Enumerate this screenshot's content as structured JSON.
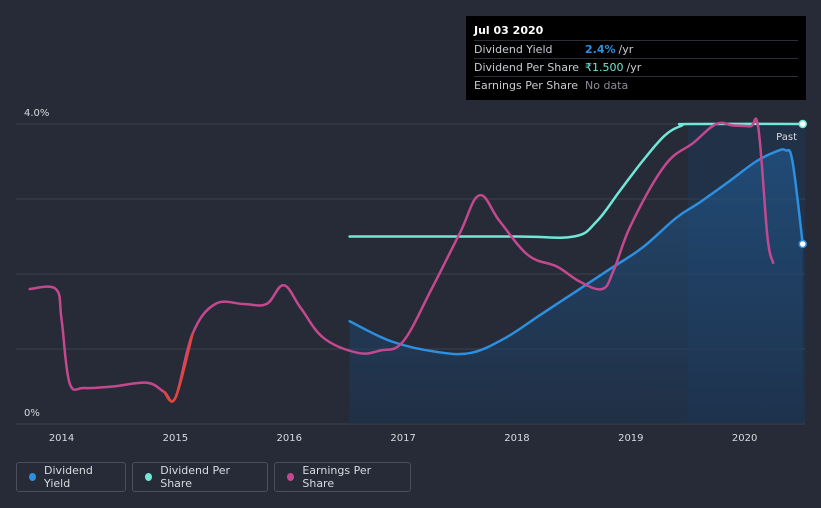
{
  "tooltip": {
    "date": "Jul 03 2020",
    "rows": [
      {
        "label": "Dividend Yield",
        "value": "2.4%",
        "unit": "/yr"
      },
      {
        "label": "Dividend Per Share",
        "value": "₹1.500",
        "unit": "/yr"
      },
      {
        "label": "Earnings Per Share",
        "value": "No data",
        "unit": ""
      }
    ]
  },
  "past_label": "Past",
  "colors": {
    "dividend_yield": "#2d8fdf",
    "dividend_per_share": "#71e7d6",
    "earnings_per_share": "#c4488e",
    "negative_eps": "#e0463b"
  },
  "chart_data": {
    "type": "line",
    "title": "",
    "xlabel": "",
    "ylabel": "",
    "y_tick_labels": [
      "4.0%",
      "0%"
    ],
    "ylim": [
      0,
      4.0
    ],
    "xlim": [
      2013.6,
      2020.53
    ],
    "x_ticks": [
      2014,
      2015,
      2016,
      2017,
      2018,
      2019,
      2020
    ],
    "grid": true,
    "legend": "bottom-left",
    "past_region_start": 2019.5,
    "series": [
      {
        "name": "Dividend Yield",
        "key": "dividend_yield",
        "filled": true,
        "x": [
          2016.53,
          2016.9,
          2017.3,
          2017.6,
          2017.9,
          2018.2,
          2018.5,
          2018.8,
          2019.1,
          2019.4,
          2019.6,
          2019.85,
          2020.1,
          2020.27,
          2020.36,
          2020.42,
          2020.51
        ],
        "y": [
          1.37,
          1.1,
          0.96,
          0.95,
          1.15,
          1.45,
          1.75,
          2.05,
          2.35,
          2.75,
          2.95,
          3.22,
          3.5,
          3.63,
          3.65,
          3.5,
          2.4
        ]
      },
      {
        "name": "Dividend Per Share",
        "key": "dividend_per_share",
        "filled": false,
        "x": [
          2016.53,
          2017.0,
          2018.0,
          2018.5,
          2018.7,
          2018.9,
          2019.1,
          2019.3,
          2019.45,
          2019.52,
          2020.51
        ],
        "y": [
          2.5,
          2.5,
          2.5,
          2.5,
          2.7,
          3.1,
          3.5,
          3.85,
          3.98,
          4.0,
          4.0
        ]
      },
      {
        "name": "Earnings Per Share",
        "key": "earnings_per_share",
        "filled": false,
        "x": [
          2013.72,
          2013.95,
          2014.0,
          2014.07,
          2014.2,
          2014.45,
          2014.75,
          2014.9,
          2015.0,
          2015.15,
          2015.35,
          2015.6,
          2015.8,
          2015.95,
          2016.1,
          2016.3,
          2016.6,
          2016.8,
          2017.0,
          2017.25,
          2017.5,
          2017.67,
          2017.85,
          2018.1,
          2018.35,
          2018.55,
          2018.75,
          2018.85,
          2019.0,
          2019.3,
          2019.55,
          2019.75,
          2019.9,
          2020.05,
          2020.12,
          2020.2,
          2020.25
        ],
        "y": [
          1.8,
          1.8,
          1.4,
          0.55,
          0.48,
          0.5,
          0.55,
          0.43,
          0.35,
          1.2,
          1.6,
          1.6,
          1.6,
          1.85,
          1.55,
          1.15,
          0.95,
          0.98,
          1.1,
          1.8,
          2.55,
          3.05,
          2.7,
          2.25,
          2.1,
          1.9,
          1.8,
          2.05,
          2.65,
          3.45,
          3.75,
          4.0,
          3.98,
          3.97,
          3.95,
          2.5,
          2.15
        ]
      }
    ]
  }
}
